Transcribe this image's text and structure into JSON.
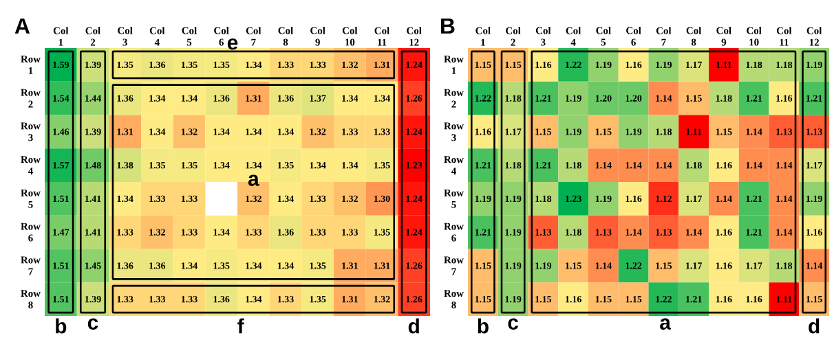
{
  "chart_data": [
    {
      "type": "heatmap",
      "title": "A",
      "data_labels": true,
      "categories": [
        "Col 1",
        "Col 2",
        "Col 3",
        "Col 4",
        "Col 5",
        "Col 6",
        "Col 7",
        "Col 8",
        "Col 9",
        "Col 10",
        "Col 11",
        "Col 12"
      ],
      "y_categories": [
        "Row 1",
        "Row 2",
        "Row 3",
        "Row 4",
        "Row 5",
        "Row 6",
        "Row 7",
        "Row 8"
      ],
      "cells": [
        [
          1.59,
          1.39,
          1.35,
          1.36,
          1.35,
          1.35,
          1.34,
          1.33,
          1.33,
          1.32,
          1.31,
          1.24
        ],
        [
          1.54,
          1.44,
          1.36,
          1.34,
          1.34,
          1.36,
          1.31,
          1.36,
          1.37,
          1.34,
          1.34,
          1.26
        ],
        [
          1.46,
          1.39,
          1.31,
          1.34,
          1.32,
          1.34,
          1.34,
          1.34,
          1.32,
          1.33,
          1.33,
          1.24
        ],
        [
          1.57,
          1.48,
          1.38,
          1.35,
          1.35,
          1.34,
          1.34,
          1.35,
          1.34,
          1.34,
          1.35,
          1.23
        ],
        [
          1.51,
          1.41,
          1.34,
          1.33,
          1.33,
          null,
          1.32,
          1.34,
          1.33,
          1.32,
          1.3,
          1.24
        ],
        [
          1.47,
          1.41,
          1.33,
          1.32,
          1.33,
          1.34,
          1.33,
          1.36,
          1.33,
          1.33,
          1.35,
          1.24
        ],
        [
          1.51,
          1.45,
          1.36,
          1.36,
          1.34,
          1.35,
          1.34,
          1.34,
          1.35,
          1.31,
          1.31,
          1.26
        ],
        [
          1.51,
          1.39,
          1.33,
          1.33,
          1.33,
          1.36,
          1.34,
          1.33,
          1.35,
          1.31,
          1.32,
          1.26
        ]
      ],
      "cell_labels": [
        [
          "1.59",
          "1.39",
          "1.35",
          "1.36",
          "1.35",
          "1.35",
          "1.34",
          "1.33",
          "1.33",
          "1.32",
          "1.31",
          "1.24"
        ],
        [
          "1.54",
          "1.44",
          "1.36",
          "1.34",
          "1.34",
          "1.36",
          "1.31",
          "1.36",
          "1.37",
          "1.34",
          "1.34",
          "1.26"
        ],
        [
          "1.46",
          "1.39",
          "1.31",
          "1.34",
          "1.32",
          "1.34",
          "1.34",
          "1.34",
          "1.32",
          "1.33",
          "1.33",
          "1.24"
        ],
        [
          "1.57",
          "1.48",
          "1.38",
          "1.35",
          "1.35",
          "1.34",
          "1.34",
          "1.35",
          "1.34",
          "1.34",
          "1.35",
          "1.23"
        ],
        [
          "1.51",
          "1.41",
          "1.34",
          "1.33",
          "1.33",
          null,
          "1.32",
          "1.34",
          "1.33",
          "1.32",
          "1.30",
          "1.24"
        ],
        [
          "1.47",
          "1.41",
          "1.33",
          "1.32",
          "1.33",
          "1.34",
          "1.33",
          "1.36",
          "1.33",
          "1.33",
          "1.35",
          "1.24"
        ],
        [
          "1.51",
          "1.45",
          "1.36",
          "1.36",
          "1.34",
          "1.35",
          "1.34",
          "1.34",
          "1.35",
          "1.31",
          "1.31",
          "1.26"
        ],
        [
          "1.51",
          "1.39",
          "1.33",
          "1.33",
          "1.33",
          "1.36",
          "1.34",
          "1.33",
          "1.35",
          "1.31",
          "1.32",
          "1.26"
        ]
      ],
      "annotations": [
        "b",
        "c",
        "d",
        "e",
        "a",
        "f"
      ]
    },
    {
      "type": "heatmap",
      "title": "B",
      "data_labels": true,
      "categories": [
        "Col 1",
        "Col 2",
        "Col 3",
        "Col 4",
        "Col 5",
        "Col 6",
        "Col 7",
        "Col 8",
        "Col 9",
        "Col 10",
        "Col 11",
        "Col 12"
      ],
      "y_categories": [
        "Row 1",
        "Row 2",
        "Row 3",
        "Row 4",
        "Row 5",
        "Row 6",
        "Row 7",
        "Row 8"
      ],
      "cells": [
        [
          1.15,
          1.15,
          1.16,
          1.22,
          1.19,
          1.16,
          1.19,
          1.17,
          1.11,
          1.18,
          1.18,
          1.19
        ],
        [
          1.22,
          1.18,
          1.21,
          1.19,
          1.2,
          1.2,
          1.14,
          1.15,
          1.18,
          1.21,
          1.16,
          1.21
        ],
        [
          1.16,
          1.17,
          1.15,
          1.19,
          1.15,
          1.19,
          1.18,
          1.11,
          1.15,
          1.14,
          1.13,
          1.13
        ],
        [
          1.21,
          1.18,
          1.21,
          1.18,
          1.14,
          1.14,
          1.14,
          1.18,
          1.16,
          1.14,
          1.14,
          1.17
        ],
        [
          1.19,
          1.19,
          1.18,
          1.23,
          1.19,
          1.16,
          1.12,
          1.17,
          1.14,
          1.21,
          1.14,
          1.19
        ],
        [
          1.21,
          1.19,
          1.13,
          1.18,
          1.13,
          1.14,
          1.13,
          1.14,
          1.16,
          1.21,
          1.14,
          1.16
        ],
        [
          1.15,
          1.19,
          1.19,
          1.15,
          1.14,
          1.22,
          1.15,
          1.17,
          1.16,
          1.17,
          1.18,
          1.14
        ],
        [
          1.15,
          1.19,
          1.15,
          1.16,
          1.15,
          1.15,
          1.22,
          1.21,
          1.16,
          1.16,
          1.11,
          1.15
        ]
      ],
      "cell_labels": [
        [
          "1.15",
          "1.15",
          "1.16",
          "1.22",
          "1.19",
          "1.16",
          "1.19",
          "1.17",
          "1.11",
          "1.18",
          "1.18",
          "1.19"
        ],
        [
          "1.22",
          "1.18",
          "1.21",
          "1.19",
          "1.20",
          "1.20",
          "1.14",
          "1.15",
          "1.18",
          "1.21",
          "1.16",
          "1.21"
        ],
        [
          "1.16",
          "1.17",
          "1.15",
          "1.19",
          "1.15",
          "1.19",
          "1.18",
          "1.11",
          "1.15",
          "1.14",
          "1.13",
          "1.13"
        ],
        [
          "1.21",
          "1.18",
          "1.21",
          "1.18",
          "1.14",
          "1.14",
          "1.14",
          "1.18",
          "1.16",
          "1.14",
          "1.14",
          "1.17"
        ],
        [
          "1.19",
          "1.19",
          "1.18",
          "1.23",
          "1.19",
          "1.16",
          "1.12",
          "1.17",
          "1.14",
          "1.21",
          "1.14",
          "1.19"
        ],
        [
          "1.21",
          "1.19",
          "1.13",
          "1.18",
          "1.13",
          "1.14",
          "1.13",
          "1.14",
          "1.16",
          "1.21",
          "1.14",
          "1.16"
        ],
        [
          "1.15",
          "1.19",
          "1.19",
          "1.15",
          "1.14",
          "1.22",
          "1.15",
          "1.17",
          "1.16",
          "1.17",
          "1.18",
          "1.14"
        ],
        [
          "1.15",
          "1.19",
          "1.15",
          "1.16",
          "1.15",
          "1.15",
          "1.22",
          "1.21",
          "1.16",
          "1.16",
          "1.11",
          "1.15"
        ]
      ],
      "annotations": [
        "b",
        "c",
        "a",
        "d"
      ]
    }
  ]
}
